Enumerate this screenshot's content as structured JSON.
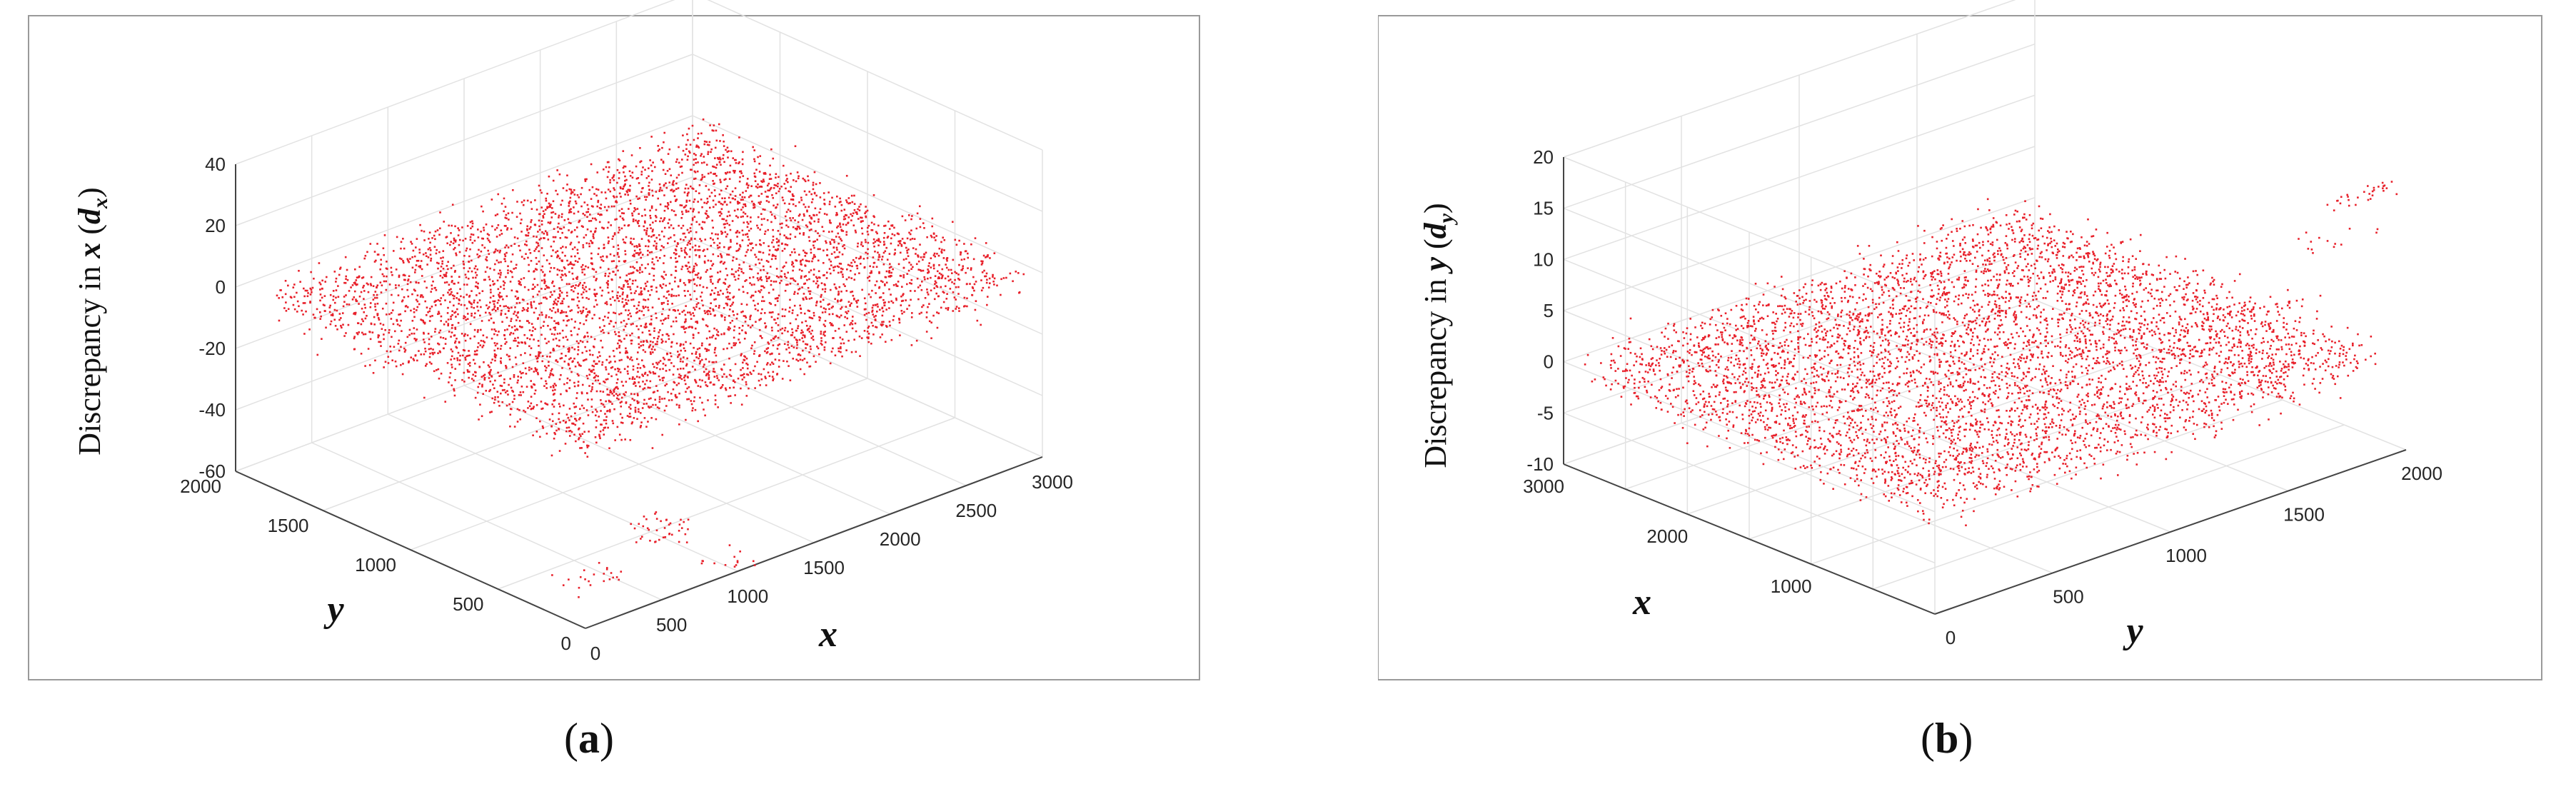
{
  "chart_data": [
    {
      "panel": "(a)",
      "caption_letter": "a",
      "type": "scatter",
      "marker_color": "#e8202a",
      "zlabel_text": "Discrepancy in",
      "zlabel_var": "x",
      "zlabel_sym": "d",
      "zlabel_sub": "x",
      "xlabel": "x",
      "ylabel": "y",
      "xlim": [
        0,
        3000
      ],
      "ylim": [
        0,
        2000
      ],
      "zlim": [
        -60,
        40
      ],
      "x_ticks": [
        "0",
        "500",
        "1000",
        "1500",
        "2000",
        "2500",
        "3000"
      ],
      "y_ticks": [
        "0",
        "500",
        "1000",
        "1500",
        "2000"
      ],
      "z_ticks": [
        "-60",
        "-40",
        "-20",
        "0",
        "20",
        "40"
      ],
      "clusters": [
        {
          "x_range": [
            0,
            2900
          ],
          "y_range": [
            0,
            1850
          ],
          "z_center": 0,
          "z_spread": 4,
          "count": 5200
        },
        {
          "x_range": [
            800,
            1100
          ],
          "y_range": [
            300,
            500
          ],
          "z_center": -55,
          "z_spread": 2,
          "count": 40
        },
        {
          "x_range": [
            200,
            500
          ],
          "y_range": [
            200,
            400
          ],
          "z_center": -58,
          "z_spread": 2,
          "count": 22
        },
        {
          "x_range": [
            900,
            1150
          ],
          "y_range": [
            0,
            150
          ],
          "z_center": -58,
          "z_spread": 2,
          "count": 14
        }
      ]
    },
    {
      "panel": "(b)",
      "caption_letter": "b",
      "type": "scatter",
      "marker_color": "#e8202a",
      "zlabel_text": "Discrepancy in",
      "zlabel_var": "y",
      "zlabel_sym": "d",
      "zlabel_sub": "y",
      "xlabel": "x",
      "ylabel": "y",
      "xlim": [
        0,
        3000
      ],
      "ylim": [
        0,
        2000
      ],
      "zlim": [
        -10,
        20
      ],
      "x_ticks": [
        "1000",
        "2000",
        "3000"
      ],
      "y_ticks": [
        "0",
        "500",
        "1000",
        "1500",
        "2000"
      ],
      "z_ticks": [
        "-10",
        "-5",
        "0",
        "5",
        "10",
        "15",
        "20"
      ],
      "clusters": [
        {
          "x_range": [
            0,
            2900
          ],
          "y_range": [
            0,
            1900
          ],
          "z_center": 0,
          "z_spread": 1.2,
          "count": 5200
        },
        {
          "x_range": [
            0,
            100
          ],
          "y_range": [
            1700,
            2000
          ],
          "z_center": 16,
          "z_spread": 0.5,
          "count": 30
        },
        {
          "x_range": [
            100,
            250
          ],
          "y_range": [
            1600,
            2000
          ],
          "z_center": 12,
          "z_spread": 1.0,
          "count": 14
        },
        {
          "x_range": [
            250,
            550
          ],
          "y_range": [
            1300,
            1800
          ],
          "z_center": 5,
          "z_spread": 0.8,
          "count": 40
        }
      ]
    }
  ]
}
